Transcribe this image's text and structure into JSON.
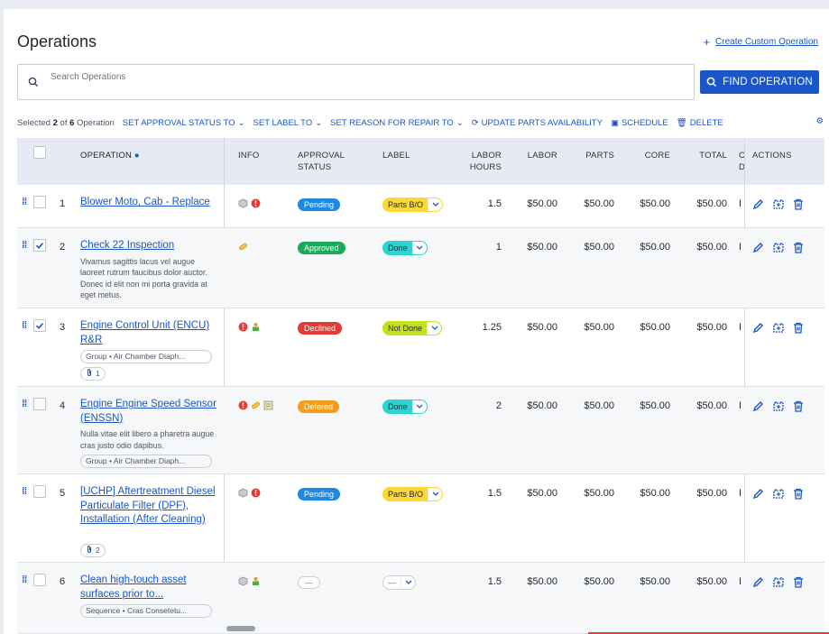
{
  "page": {
    "title": "Operations",
    "create_link": "Create Custom Operation"
  },
  "search": {
    "placeholder": "Search Operations",
    "button": "FIND OPERATION"
  },
  "bulk": {
    "selected_pre": "Selected ",
    "selected_count": "2",
    "selected_mid": " of ",
    "total_count": "6",
    "selected_post": " Operation",
    "actions": [
      "SET APPROVAL STATUS TO",
      "SET LABEL TO",
      "SET REASON FOR REPAIR TO",
      "UPDATE PARTS AVAILABILITY",
      "SCHEDULE",
      "DELETE"
    ]
  },
  "columns": {
    "operation": "OPERATION",
    "info": "INFO",
    "approval": "APPROVAL\nSTATUS",
    "label": "LABEL",
    "labor_hours": "LABOR\nHOURS",
    "labor": "LABOR",
    "parts": "PARTS",
    "core": "CORE",
    "total": "TOTAL",
    "cut": "C\nD",
    "actions": "ACTIONS"
  },
  "colors": {
    "accent": "#1a56c8",
    "pending": "#1e88e5",
    "approved": "#1aab57",
    "declined": "#e53935",
    "defered": "#f59c1a",
    "parts_bo": "#fcd837",
    "done": "#2ed3d0",
    "not_done": "#c6e01e"
  },
  "rows": [
    {
      "num": "1",
      "name": "Blower Moto, Cab - Replace",
      "desc": "",
      "chip": "",
      "clip": "",
      "approval": "Pending",
      "label": "Parts B/O",
      "hours": "1.5",
      "labor": "$50.00",
      "parts": "$50.00",
      "core": "$50.00",
      "total": "$50.00",
      "cut": "I",
      "checked": false
    },
    {
      "num": "2",
      "name": "Check 22 Inspection",
      "desc": "Vivamus sagittis lacus vel augue laoreet rutrum faucibus dolor auctor. Donec id elit non mi porta gravida at eget metus.",
      "chip": "",
      "clip": "",
      "approval": "Approved",
      "label": "Done",
      "hours": "1",
      "labor": "$50.00",
      "parts": "$50.00",
      "core": "$50.00",
      "total": "$50.00",
      "cut": "I",
      "checked": true
    },
    {
      "num": "3",
      "name": "Engine Control Unit (ENCU) R&R",
      "desc": "",
      "chip": "Group • Air Chamber Diaph...",
      "clip": "1",
      "approval": "Declined",
      "label": "Not Done",
      "hours": "1.25",
      "labor": "$50.00",
      "parts": "$50.00",
      "core": "$50.00",
      "total": "$50.00",
      "cut": "I",
      "checked": true
    },
    {
      "num": "4",
      "name": "Engine Engine Speed Sensor (ENSSN)",
      "desc": "Nulla vitae elit libero a pharetra augue cras justo odio dapibus.",
      "chip": "Group • Air Chamber Diaph...",
      "clip": "",
      "approval": "Defered",
      "label": "Done",
      "hours": "2",
      "labor": "$50.00",
      "parts": "$50.00",
      "core": "$50.00",
      "total": "$50.00",
      "cut": "I",
      "checked": false
    },
    {
      "num": "5",
      "name": "[UCHP] Aftertreatment Diesel Particulate Filter (DPF), Installation (After Cleaning)",
      "desc": "",
      "chip": "",
      "clip": "2",
      "approval": "Pending",
      "label": "Parts B/O",
      "hours": "1.5",
      "labor": "$50.00",
      "parts": "$50.00",
      "core": "$50.00",
      "total": "$50.00",
      "cut": "I",
      "checked": false
    },
    {
      "num": "6",
      "name": "Clean high-touch asset surfaces prior to...",
      "desc": "",
      "chip": "Sequence • Cras Consetetu...",
      "clip": "",
      "approval": "—",
      "label": "—",
      "hours": "1.5",
      "labor": "$50.00",
      "parts": "$50.00",
      "core": "$50.00",
      "total": "$50.00",
      "cut": "I",
      "checked": false
    }
  ]
}
